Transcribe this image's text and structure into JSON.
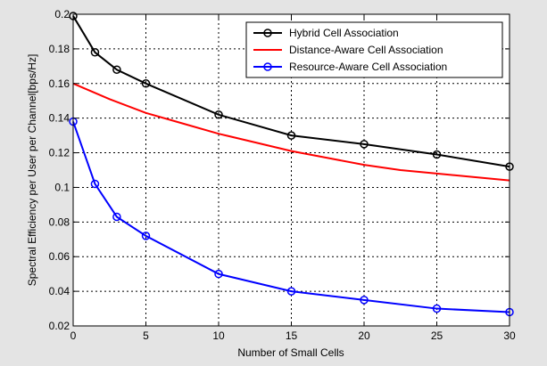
{
  "chart_data": {
    "type": "line",
    "xlabel": "Number of Small Cells",
    "ylabel": "Spectral Efficiency per User per Channel[bps/Hz]",
    "xlim": [
      0,
      30
    ],
    "ylim": [
      0.02,
      0.2
    ],
    "xticks": [
      "0",
      "5",
      "10",
      "15",
      "20",
      "25",
      "30"
    ],
    "yticks": [
      "0.02",
      "0.04",
      "0.06",
      "0.08",
      "0.1",
      "0.12",
      "0.14",
      "0.16",
      "0.18",
      "0.2"
    ],
    "grid": true,
    "legend_position": "top-right",
    "series": [
      {
        "name": "Hybrid Cell Association",
        "color": "#000000",
        "marker": "circle",
        "x": [
          0,
          1.5,
          3,
          5,
          10,
          15,
          20,
          25,
          30
        ],
        "y": [
          0.199,
          0.178,
          0.168,
          0.16,
          0.142,
          0.13,
          0.125,
          0.119,
          0.112
        ]
      },
      {
        "name": "Distance-Aware Cell Association",
        "color": "#ff0000",
        "marker": "none",
        "x": [
          0,
          2.5,
          5,
          7.5,
          10,
          12.5,
          15,
          17.5,
          20,
          22.5,
          25,
          27.5,
          30
        ],
        "y": [
          0.16,
          0.151,
          0.143,
          0.137,
          0.131,
          0.126,
          0.121,
          0.117,
          0.113,
          0.11,
          0.108,
          0.106,
          0.104
        ]
      },
      {
        "name": "Resource-Aware Cell Association",
        "color": "#0000ff",
        "marker": "circle",
        "x": [
          0,
          1.5,
          3,
          5,
          10,
          15,
          20,
          25,
          30
        ],
        "y": [
          0.138,
          0.102,
          0.083,
          0.072,
          0.05,
          0.04,
          0.035,
          0.03,
          0.028
        ]
      }
    ]
  }
}
